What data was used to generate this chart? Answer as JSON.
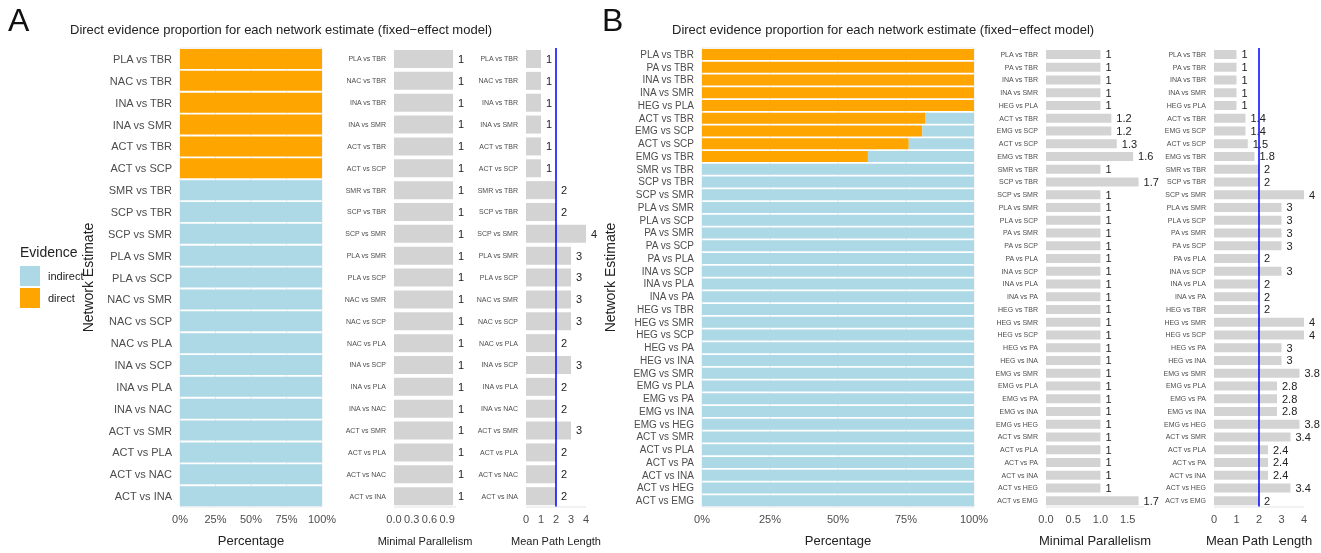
{
  "chart_data": [
    {
      "type": "bar",
      "orientation": "horizontal",
      "stacked": true,
      "title": "Direct evidence proportion for each network estimate (fixed−effect model)",
      "annotations": [
        "A"
      ],
      "xlabel": "Percentage",
      "ylabel": "Network Estimate",
      "legend_title": "Evidence",
      "legend": "left",
      "grid": true,
      "categories": [
        "PLA vs TBR",
        "NAC vs TBR",
        "INA vs TBR",
        "INA vs SMR",
        "ACT vs TBR",
        "ACT vs SCP",
        "SMR vs TBR",
        "SCP vs TBR",
        "SCP vs SMR",
        "PLA vs SMR",
        "PLA vs SCP",
        "NAC vs SMR",
        "NAC vs SCP",
        "NAC vs PLA",
        "INA vs SCP",
        "INA vs PLA",
        "INA vs NAC",
        "ACT vs SMR",
        "ACT vs PLA",
        "ACT vs NAC",
        "ACT vs INA"
      ],
      "xlim": [
        0,
        100
      ],
      "xticks": [
        {
          "value": 0,
          "label": "0%"
        },
        {
          "value": 25,
          "label": "25%"
        },
        {
          "value": 50,
          "label": "50%"
        },
        {
          "value": 75,
          "label": "75%"
        },
        {
          "value": 100,
          "label": "100%"
        }
      ],
      "series": [
        {
          "name": "direct",
          "color": "#ffa500",
          "values": [
            100,
            100,
            100,
            100,
            100,
            100,
            0,
            0,
            0,
            0,
            0,
            0,
            0,
            0,
            0,
            0,
            0,
            0,
            0,
            0,
            0
          ]
        },
        {
          "name": "indirect",
          "color": "#add8e6",
          "values": [
            0,
            0,
            0,
            0,
            0,
            0,
            100,
            100,
            100,
            100,
            100,
            100,
            100,
            100,
            100,
            100,
            100,
            100,
            100,
            100,
            100
          ]
        }
      ]
    },
    {
      "type": "bar",
      "orientation": "horizontal",
      "xlabel": "Minimal Parallelism",
      "data_labels": true,
      "categories": [
        "PLA vs TBR",
        "NAC vs TBR",
        "INA vs TBR",
        "INA vs SMR",
        "ACT vs TBR",
        "ACT vs SCP",
        "SMR vs TBR",
        "SCP vs TBR",
        "SCP vs SMR",
        "PLA vs SMR",
        "PLA vs SCP",
        "NAC vs SMR",
        "NAC vs SCP",
        "NAC vs PLA",
        "INA vs SCP",
        "INA vs PLA",
        "INA vs NAC",
        "ACT vs SMR",
        "ACT vs PLA",
        "ACT vs NAC",
        "ACT vs INA"
      ],
      "xlim": [
        0,
        1.05
      ],
      "xticks": [
        {
          "value": 0,
          "label": "0.0"
        },
        {
          "value": 0.3,
          "label": "0.3"
        },
        {
          "value": 0.6,
          "label": "0.6"
        },
        {
          "value": 0.9,
          "label": "0.9"
        }
      ],
      "series": [
        {
          "color": "#d3d3d3",
          "values": [
            1,
            1,
            1,
            1,
            1,
            1,
            1,
            1,
            1,
            1,
            1,
            1,
            1,
            1,
            1,
            1,
            1,
            1,
            1,
            1,
            1
          ]
        }
      ]
    },
    {
      "type": "bar",
      "orientation": "horizontal",
      "xlabel": "Mean Path Length",
      "data_labels": true,
      "categories": [
        "PLA vs TBR",
        "NAC vs TBR",
        "INA vs TBR",
        "INA vs SMR",
        "ACT vs TBR",
        "ACT vs SCP",
        "SMR vs TBR",
        "SCP vs TBR",
        "SCP vs SMR",
        "PLA vs SMR",
        "PLA vs SCP",
        "NAC vs SMR",
        "NAC vs SCP",
        "NAC vs PLA",
        "INA vs SCP",
        "INA vs PLA",
        "INA vs NAC",
        "ACT vs SMR",
        "ACT vs PLA",
        "ACT vs NAC",
        "ACT vs INA"
      ],
      "xlim": [
        0,
        4
      ],
      "xticks": [
        0,
        1,
        2,
        3,
        4
      ],
      "ref_lines": [
        {
          "axis": "x",
          "value": 2,
          "color": "#0000ff"
        }
      ],
      "series": [
        {
          "color": "#d3d3d3",
          "values": [
            1,
            1,
            1,
            1,
            1,
            1,
            2,
            2,
            4,
            3,
            3,
            3,
            3,
            2,
            3,
            2,
            2,
            3,
            2,
            2,
            2
          ]
        }
      ]
    },
    {
      "type": "bar",
      "orientation": "horizontal",
      "stacked": true,
      "title": "Direct evidence proportion for each network estimate (fixed−effect model)",
      "annotations": [
        "B"
      ],
      "xlabel": "Percentage",
      "ylabel": "Network Estimate",
      "grid": true,
      "categories": [
        "PLA vs TBR",
        "PA vs TBR",
        "INA vs TBR",
        "INA vs SMR",
        "HEG vs PLA",
        "ACT vs TBR",
        "EMG vs SCP",
        "ACT vs SCP",
        "EMG vs TBR",
        "SMR vs TBR",
        "SCP vs TBR",
        "SCP vs SMR",
        "PLA vs SMR",
        "PLA vs SCP",
        "PA vs SMR",
        "PA vs SCP",
        "PA vs PLA",
        "INA vs SCP",
        "INA vs PLA",
        "INA vs PA",
        "HEG vs TBR",
        "HEG vs SMR",
        "HEG vs SCP",
        "HEG vs PA",
        "HEG vs INA",
        "EMG vs SMR",
        "EMG vs PLA",
        "EMG vs PA",
        "EMG vs INA",
        "EMG vs HEG",
        "ACT vs SMR",
        "ACT vs PLA",
        "ACT vs PA",
        "ACT vs INA",
        "ACT vs HEG",
        "ACT vs EMG"
      ],
      "xlim": [
        0,
        100
      ],
      "xticks": [
        {
          "value": 0,
          "label": "0%"
        },
        {
          "value": 25,
          "label": "25%"
        },
        {
          "value": 50,
          "label": "50%"
        },
        {
          "value": 75,
          "label": "75%"
        },
        {
          "value": 100,
          "label": "100%"
        }
      ],
      "series": [
        {
          "color": "#ffa500",
          "values": [
            100,
            100,
            100,
            100,
            100,
            82,
            81,
            76,
            61,
            0,
            0,
            0,
            0,
            0,
            0,
            0,
            0,
            0,
            0,
            0,
            0,
            0,
            0,
            0,
            0,
            0,
            0,
            0,
            0,
            0,
            0,
            0,
            0,
            0,
            0,
            0
          ]
        },
        {
          "color": "#add8e6",
          "values": [
            0,
            0,
            0,
            0,
            0,
            18,
            19,
            24,
            39,
            100,
            100,
            100,
            100,
            100,
            100,
            100,
            100,
            100,
            100,
            100,
            100,
            100,
            100,
            100,
            100,
            100,
            100,
            100,
            100,
            100,
            100,
            100,
            100,
            100,
            100,
            100
          ]
        }
      ]
    },
    {
      "type": "bar",
      "orientation": "horizontal",
      "xlabel": "Minimal Parallelism",
      "data_labels": true,
      "categories": [
        "PLA vs TBR",
        "PA vs TBR",
        "INA vs TBR",
        "INA vs SMR",
        "HEG vs PLA",
        "ACT vs TBR",
        "EMG vs SCP",
        "ACT vs SCP",
        "EMG vs TBR",
        "SMR vs TBR",
        "SCP vs TBR",
        "SCP vs SMR",
        "PLA vs SMR",
        "PLA vs SCP",
        "PA vs SMR",
        "PA vs SCP",
        "PA vs PLA",
        "INA vs SCP",
        "INA vs PLA",
        "INA vs PA",
        "HEG vs TBR",
        "HEG vs SMR",
        "HEG vs SCP",
        "HEG vs PA",
        "HEG vs INA",
        "EMG vs SMR",
        "EMG vs PLA",
        "EMG vs PA",
        "EMG vs INA",
        "EMG vs HEG",
        "ACT vs SMR",
        "ACT vs PLA",
        "ACT vs PA",
        "ACT vs INA",
        "ACT vs HEG",
        "ACT vs EMG"
      ],
      "xlim": [
        0,
        1.8
      ],
      "xticks": [
        {
          "value": 0,
          "label": "0.0"
        },
        {
          "value": 0.5,
          "label": "0.5"
        },
        {
          "value": 1,
          "label": "1.0"
        },
        {
          "value": 1.5,
          "label": "1.5"
        }
      ],
      "series": [
        {
          "color": "#d3d3d3",
          "values": [
            1,
            1,
            1,
            1,
            1,
            1.2,
            1.2,
            1.3,
            1.6,
            1,
            1.7,
            1,
            1,
            1,
            1,
            1,
            1,
            1,
            1,
            1,
            1,
            1,
            1,
            1,
            1,
            1,
            1,
            1,
            1,
            1,
            1,
            1,
            1,
            1,
            1,
            1.7
          ]
        }
      ]
    },
    {
      "type": "bar",
      "orientation": "horizontal",
      "xlabel": "Mean Path Length",
      "data_labels": true,
      "categories": [
        "PLA vs TBR",
        "PA vs TBR",
        "INA vs TBR",
        "INA vs SMR",
        "HEG vs PLA",
        "ACT vs TBR",
        "EMG vs SCP",
        "ACT vs SCP",
        "EMG vs TBR",
        "SMR vs TBR",
        "SCP vs TBR",
        "SCP vs SMR",
        "PLA vs SMR",
        "PLA vs SCP",
        "PA vs SMR",
        "PA vs SCP",
        "PA vs PLA",
        "INA vs SCP",
        "INA vs PLA",
        "INA vs PA",
        "HEG vs TBR",
        "HEG vs SMR",
        "HEG vs SCP",
        "HEG vs PA",
        "HEG vs INA",
        "EMG vs SMR",
        "EMG vs PLA",
        "EMG vs PA",
        "EMG vs INA",
        "EMG vs HEG",
        "ACT vs SMR",
        "ACT vs PLA",
        "ACT vs PA",
        "ACT vs INA",
        "ACT vs HEG",
        "ACT vs EMG"
      ],
      "xlim": [
        0,
        4
      ],
      "xticks": [
        0,
        1,
        2,
        3,
        4
      ],
      "ref_lines": [
        {
          "axis": "x",
          "value": 2,
          "color": "#0000ff"
        }
      ],
      "series": [
        {
          "color": "#d3d3d3",
          "values": [
            1,
            1,
            1,
            1,
            1,
            1.4,
            1.4,
            1.5,
            1.8,
            2,
            2,
            4,
            3,
            3,
            3,
            3,
            2,
            3,
            2,
            2,
            2,
            4,
            4,
            3,
            3,
            3.8,
            2.8,
            2.8,
            2.8,
            3.8,
            3.4,
            2.4,
            2.4,
            2.4,
            3.4,
            2
          ]
        }
      ]
    }
  ]
}
